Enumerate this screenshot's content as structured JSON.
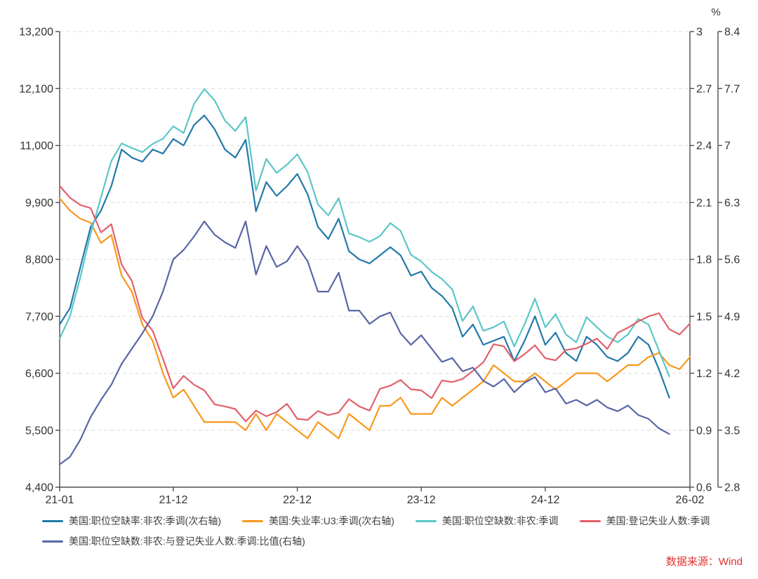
{
  "source": {
    "text": "数据来源：Wind"
  },
  "chart_data": {
    "type": "line",
    "title": "",
    "grid": "horizontal-dashed",
    "legend_position": "bottom",
    "x": [
      "21-01",
      "21-02",
      "21-03",
      "21-04",
      "21-05",
      "21-06",
      "21-07",
      "21-08",
      "21-09",
      "21-10",
      "21-11",
      "21-12",
      "22-01",
      "22-02",
      "22-03",
      "22-04",
      "22-05",
      "22-06",
      "22-07",
      "22-08",
      "22-09",
      "22-10",
      "22-11",
      "22-12",
      "23-01",
      "23-02",
      "23-03",
      "23-04",
      "23-05",
      "23-06",
      "23-07",
      "23-08",
      "23-09",
      "23-10",
      "23-11",
      "23-12",
      "24-01",
      "24-02",
      "24-03",
      "24-04",
      "24-05",
      "24-06",
      "24-07",
      "24-08",
      "24-09",
      "24-10",
      "24-11",
      "24-12",
      "25-01",
      "25-02",
      "25-03",
      "25-04",
      "25-05",
      "25-06",
      "25-07",
      "25-08",
      "25-09",
      "25-10",
      "25-11",
      "25-12",
      "26-01",
      "26-02"
    ],
    "x_tick_indices": [
      0,
      11,
      23,
      35,
      47,
      61
    ],
    "x_tick_labels": [
      "21-01",
      "21-12",
      "22-12",
      "23-12",
      "24-12",
      "26-02"
    ],
    "axes": {
      "left": {
        "min": 4400,
        "max": 13200,
        "step": 1100,
        "tick_labels": [
          "13,200",
          "12,100",
          "11,000",
          "9,900",
          "8,800",
          "7,700",
          "6,600",
          "5,500",
          "4,400"
        ]
      },
      "right1": {
        "min": 0.6,
        "max": 3.0,
        "step": 0.3,
        "tick_labels": [
          "3",
          "2.7",
          "2.4",
          "2.1",
          "1.8",
          "1.5",
          "1.2",
          "0.9",
          "0.6"
        ]
      },
      "right2": {
        "min": 2.8,
        "max": 8.4,
        "step": 0.7,
        "unit": "%",
        "tick_labels": [
          "8.4",
          "7.7",
          "7",
          "6.3",
          "5.6",
          "4.9",
          "4.2",
          "3.5",
          "2.8"
        ]
      }
    },
    "series": [
      {
        "name": "美国:职位空缺率:非农:季调(次右轴)",
        "axis": "right2",
        "color": "#2379a9",
        "values": [
          4.8,
          5.0,
          5.5,
          6.0,
          6.2,
          6.5,
          6.95,
          6.85,
          6.8,
          6.95,
          6.9,
          7.08,
          7.0,
          7.25,
          7.37,
          7.2,
          6.95,
          6.85,
          7.07,
          6.19,
          6.55,
          6.38,
          6.5,
          6.65,
          6.4,
          6.0,
          5.85,
          6.1,
          5.7,
          5.6,
          5.55,
          5.65,
          5.75,
          5.65,
          5.4,
          5.45,
          5.25,
          5.15,
          5.0,
          4.65,
          4.8,
          4.55,
          4.6,
          4.65,
          4.35,
          4.6,
          4.9,
          4.55,
          4.7,
          4.45,
          4.35,
          4.65,
          4.55,
          4.4,
          4.35,
          4.45,
          4.65,
          4.55,
          4.25,
          3.9,
          null,
          null
        ]
      },
      {
        "name": "美国:失业率:U3:季调(次右轴)",
        "axis": "right2",
        "color": "#f8981d",
        "values": [
          6.35,
          6.2,
          6.1,
          6.05,
          5.8,
          5.9,
          5.4,
          5.2,
          4.8,
          4.6,
          4.2,
          3.9,
          4.0,
          3.8,
          3.6,
          3.6,
          3.6,
          3.6,
          3.5,
          3.7,
          3.5,
          3.7,
          3.6,
          3.5,
          3.4,
          3.6,
          3.5,
          3.4,
          3.7,
          3.6,
          3.5,
          3.8,
          3.8,
          3.9,
          3.7,
          3.7,
          3.7,
          3.9,
          3.8,
          3.9,
          4.0,
          4.1,
          4.3,
          4.2,
          4.1,
          4.1,
          4.2,
          4.1,
          4.0,
          4.1,
          4.2,
          4.2,
          4.2,
          4.1,
          4.2,
          4.3,
          4.3,
          4.4,
          4.45,
          4.3,
          4.25,
          4.4
        ]
      },
      {
        "name": "美国:职位空缺数:非农:季调",
        "axis": "left",
        "color": "#5cc6c8",
        "values": [
          7270,
          7700,
          8450,
          9300,
          10000,
          10700,
          11040,
          10950,
          10870,
          11030,
          11130,
          11370,
          11240,
          11800,
          12090,
          11870,
          11480,
          11280,
          11550,
          10130,
          10740,
          10470,
          10630,
          10830,
          10490,
          9860,
          9650,
          9980,
          9300,
          9230,
          9140,
          9250,
          9500,
          9350,
          8890,
          8760,
          8560,
          8420,
          8220,
          7610,
          7890,
          7420,
          7490,
          7600,
          7120,
          7550,
          8040,
          7490,
          7740,
          7350,
          7200,
          7680,
          7490,
          7310,
          7200,
          7350,
          7650,
          7540,
          7040,
          6540,
          null,
          null
        ]
      },
      {
        "name": "美国:登记失业人数:季调",
        "axis": "left",
        "color": "#e2606b",
        "values": [
          10220,
          9990,
          9850,
          9790,
          9320,
          9480,
          8700,
          8380,
          7670,
          7420,
          6880,
          6310,
          6550,
          6380,
          6270,
          6000,
          5960,
          5910,
          5670,
          5880,
          5770,
          5850,
          6010,
          5720,
          5700,
          5870,
          5790,
          5840,
          6100,
          5960,
          5880,
          6300,
          6360,
          6470,
          6290,
          6270,
          6120,
          6460,
          6430,
          6490,
          6650,
          6810,
          7160,
          7120,
          6830,
          6970,
          7140,
          6890,
          6850,
          7050,
          7080,
          7170,
          7270,
          7070,
          7380,
          7480,
          7600,
          7700,
          7760,
          7450,
          7350,
          7560
        ]
      },
      {
        "name": "美国:职位空缺数:非农:与登记失业人数:季调:比值(右轴)",
        "axis": "right1",
        "color": "#5966a5",
        "values": [
          0.72,
          0.76,
          0.85,
          0.97,
          1.06,
          1.14,
          1.25,
          1.33,
          1.41,
          1.5,
          1.63,
          1.8,
          1.85,
          1.92,
          2.0,
          1.93,
          1.89,
          1.86,
          2.0,
          1.72,
          1.87,
          1.76,
          1.79,
          1.87,
          1.79,
          1.63,
          1.63,
          1.73,
          1.53,
          1.53,
          1.46,
          1.5,
          1.52,
          1.41,
          1.35,
          1.4,
          1.33,
          1.26,
          1.28,
          1.21,
          1.23,
          1.16,
          1.13,
          1.17,
          1.1,
          1.15,
          1.18,
          1.1,
          1.12,
          1.04,
          1.06,
          1.03,
          1.06,
          1.02,
          1.0,
          1.03,
          0.98,
          0.96,
          0.91,
          0.88,
          null,
          null
        ]
      }
    ]
  }
}
